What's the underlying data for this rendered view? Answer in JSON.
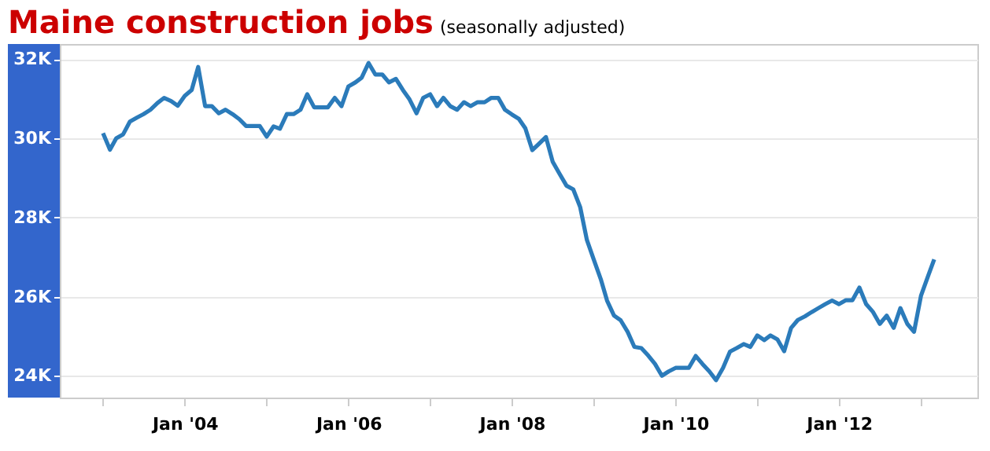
{
  "chart_data": {
    "type": "line",
    "title": "Maine construction jobs",
    "subtitle": "(seasonally adjusted)",
    "x": [
      "2003-01",
      "2003-02",
      "2003-03",
      "2003-04",
      "2003-05",
      "2003-06",
      "2003-07",
      "2003-08",
      "2003-09",
      "2003-10",
      "2003-11",
      "2003-12",
      "2004-01",
      "2004-02",
      "2004-03",
      "2004-04",
      "2004-05",
      "2004-06",
      "2004-07",
      "2004-08",
      "2004-09",
      "2004-10",
      "2004-11",
      "2004-12",
      "2005-01",
      "2005-02",
      "2005-03",
      "2005-04",
      "2005-05",
      "2005-06",
      "2005-07",
      "2005-08",
      "2005-09",
      "2005-10",
      "2005-11",
      "2005-12",
      "2006-01",
      "2006-02",
      "2006-03",
      "2006-04",
      "2006-05",
      "2006-06",
      "2006-07",
      "2006-08",
      "2006-09",
      "2006-10",
      "2006-11",
      "2006-12",
      "2007-01",
      "2007-02",
      "2007-03",
      "2007-04",
      "2007-05",
      "2007-06",
      "2007-07",
      "2007-08",
      "2007-09",
      "2007-10",
      "2007-11",
      "2007-12",
      "2008-01",
      "2008-02",
      "2008-03",
      "2008-04",
      "2008-05",
      "2008-06",
      "2008-07",
      "2008-08",
      "2008-09",
      "2008-10",
      "2008-11",
      "2008-12",
      "2009-01",
      "2009-02",
      "2009-03",
      "2009-04",
      "2009-05",
      "2009-06",
      "2009-07",
      "2009-08",
      "2009-09",
      "2009-10",
      "2009-11",
      "2009-12",
      "2010-01",
      "2010-02",
      "2010-03",
      "2010-04",
      "2010-05",
      "2010-06",
      "2010-07",
      "2010-08",
      "2010-09",
      "2010-10",
      "2010-11",
      "2010-12",
      "2011-01",
      "2011-02",
      "2011-03",
      "2011-04",
      "2011-05",
      "2011-06",
      "2011-07",
      "2011-08",
      "2011-09",
      "2011-10",
      "2011-11",
      "2011-12",
      "2012-01",
      "2012-02",
      "2012-03",
      "2012-04",
      "2012-05",
      "2012-06",
      "2012-07",
      "2012-08",
      "2012-09",
      "2012-10",
      "2012-11",
      "2012-12",
      "2013-01",
      "2013-02",
      "2013-03"
    ],
    "series": [
      {
        "color": "#2b7bba",
        "values": [
          30130,
          29710,
          30000,
          30100,
          30420,
          30520,
          30610,
          30720,
          30890,
          31020,
          30940,
          30820,
          31070,
          31220,
          31800,
          30810,
          30810,
          30630,
          30720,
          30610,
          30480,
          30310,
          30310,
          30310,
          30040,
          30300,
          30240,
          30610,
          30610,
          30720,
          31110,
          30780,
          30780,
          30780,
          31020,
          30810,
          31310,
          31410,
          31530,
          31900,
          31610,
          31610,
          31410,
          31500,
          31220,
          30980,
          30630,
          31020,
          31110,
          30810,
          31020,
          30810,
          30720,
          30910,
          30810,
          30910,
          30910,
          31020,
          31020,
          30720,
          30600,
          30490,
          30250,
          29700,
          29860,
          30030,
          29410,
          29100,
          28800,
          28710,
          28260,
          27430,
          26930,
          26440,
          25900,
          25520,
          25400,
          25110,
          24730,
          24700,
          24510,
          24300,
          24000,
          24110,
          24200,
          24200,
          24200,
          24500,
          24300,
          24110,
          23890,
          24200,
          24610,
          24700,
          24800,
          24730,
          25020,
          24900,
          25020,
          24920,
          24620,
          25210,
          25410,
          25500,
          25610,
          25710,
          25810,
          25900,
          25810,
          25910,
          25910,
          26230,
          25810,
          25610,
          25310,
          25520,
          25210,
          25710,
          25310,
          25110,
          26020,
          26510,
          26940
        ]
      }
    ],
    "xlim": [
      "2002-06-22",
      "2013-09-10"
    ],
    "xticks": [
      {
        "value": "2003-01",
        "label": null
      },
      {
        "value": "2004-01",
        "label": "Jan '04"
      },
      {
        "value": "2005-01",
        "label": null
      },
      {
        "value": "2006-01",
        "label": "Jan '06"
      },
      {
        "value": "2007-01",
        "label": null
      },
      {
        "value": "2008-01",
        "label": "Jan '08"
      },
      {
        "value": "2009-01",
        "label": null
      },
      {
        "value": "2010-01",
        "label": "Jan '10"
      },
      {
        "value": "2011-01",
        "label": null
      },
      {
        "value": "2012-01",
        "label": "Jan '12"
      },
      {
        "value": "2013-01",
        "label": null
      }
    ],
    "ylim": [
      23450,
      32380
    ],
    "yticks": [
      {
        "value": 24000,
        "label": "24K"
      },
      {
        "value": 26000,
        "label": "26K"
      },
      {
        "value": 28000,
        "label": "28K"
      },
      {
        "value": 30000,
        "label": "30K"
      },
      {
        "value": 32000,
        "label": "32K"
      }
    ],
    "grid": "y"
  }
}
